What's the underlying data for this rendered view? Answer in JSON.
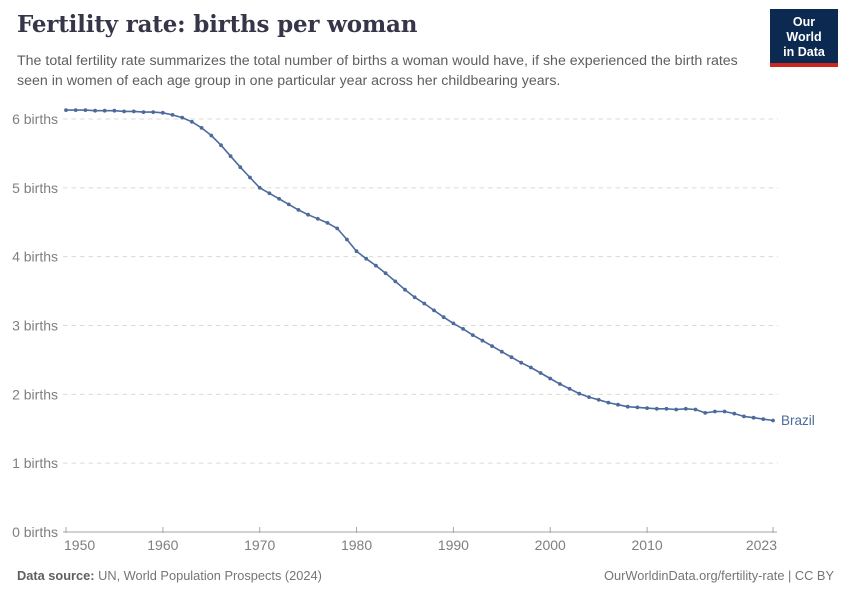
{
  "header": {
    "title": "Fertility rate: births per woman",
    "subtitle": "The total fertility rate summarizes the total number of births a woman would have, if she experienced the birth rates seen in women of each age group in one particular year across her childbearing years.",
    "logo": {
      "line1": "Our World",
      "line2": "in Data",
      "bg_color": "#0c2a51",
      "accent_color": "#ce261f"
    }
  },
  "chart_data": {
    "type": "line",
    "title": "Fertility rate: births per woman",
    "xlabel": "",
    "ylabel": "births per woman",
    "xlim": [
      1950,
      2023
    ],
    "ylim": [
      0,
      6
    ],
    "x_ticks": [
      1950,
      1960,
      1970,
      1980,
      1990,
      2000,
      2010,
      2023
    ],
    "y_ticks": [
      0,
      1,
      2,
      3,
      4,
      5,
      6
    ],
    "y_tick_suffix": " births",
    "grid": "horizontal-dashed",
    "legend_position": "end-of-line-label",
    "colors": {
      "grid": "#dadada",
      "axis": "#a6a6a6",
      "tick_label": "#7f7f7f"
    },
    "series": [
      {
        "name": "Brazil",
        "color": "#4c6a9c",
        "x": [
          1950,
          1951,
          1952,
          1953,
          1954,
          1955,
          1956,
          1957,
          1958,
          1959,
          1960,
          1961,
          1962,
          1963,
          1964,
          1965,
          1966,
          1967,
          1968,
          1969,
          1970,
          1971,
          1972,
          1973,
          1974,
          1975,
          1976,
          1977,
          1978,
          1979,
          1980,
          1981,
          1982,
          1983,
          1984,
          1985,
          1986,
          1987,
          1988,
          1989,
          1990,
          1991,
          1992,
          1993,
          1994,
          1995,
          1996,
          1997,
          1998,
          1999,
          2000,
          2001,
          2002,
          2003,
          2004,
          2005,
          2006,
          2007,
          2008,
          2009,
          2010,
          2011,
          2012,
          2013,
          2014,
          2015,
          2016,
          2017,
          2018,
          2019,
          2020,
          2021,
          2022,
          2023
        ],
        "values": [
          6.13,
          6.13,
          6.13,
          6.12,
          6.12,
          6.12,
          6.11,
          6.11,
          6.1,
          6.1,
          6.09,
          6.06,
          6.02,
          5.96,
          5.87,
          5.76,
          5.62,
          5.46,
          5.3,
          5.15,
          5.0,
          4.92,
          4.84,
          4.76,
          4.68,
          4.61,
          4.55,
          4.49,
          4.41,
          4.25,
          4.08,
          3.97,
          3.87,
          3.76,
          3.64,
          3.52,
          3.41,
          3.32,
          3.22,
          3.12,
          3.03,
          2.95,
          2.86,
          2.78,
          2.7,
          2.62,
          2.54,
          2.46,
          2.39,
          2.31,
          2.23,
          2.15,
          2.08,
          2.01,
          1.96,
          1.92,
          1.88,
          1.85,
          1.82,
          1.81,
          1.8,
          1.79,
          1.79,
          1.78,
          1.79,
          1.78,
          1.73,
          1.75,
          1.75,
          1.72,
          1.68,
          1.66,
          1.64,
          1.62
        ]
      }
    ]
  },
  "footer": {
    "source_label": "Data source:",
    "source_text": " UN, World Population Prospects (2024)",
    "link_text": "OurWorldinData.org/fertility-rate | CC BY"
  }
}
